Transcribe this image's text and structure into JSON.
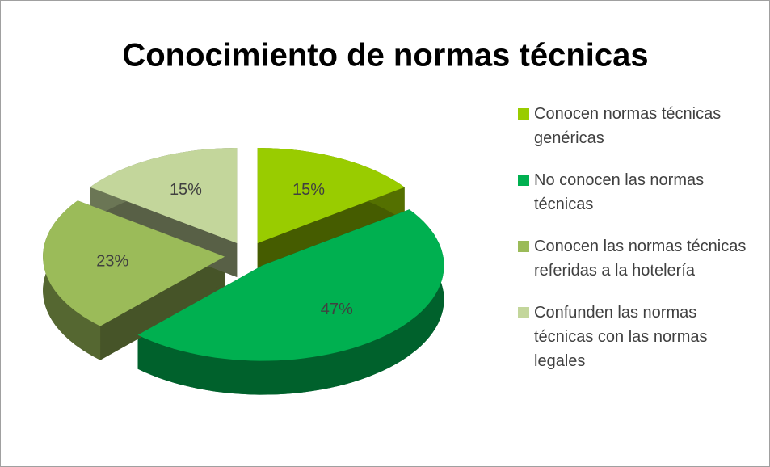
{
  "chart_data": {
    "type": "pie",
    "title": "Conocimiento de normas técnicas",
    "categories": [
      "Conocen normas técnicas genéricas",
      "No conocen las normas técnicas",
      "Conocen las normas técnicas referidas a la hotelería",
      "Confunden las normas técnicas con las normas legales"
    ],
    "values": [
      15,
      47,
      23,
      15
    ],
    "value_labels": [
      "15%",
      "47%",
      "23%",
      "15%"
    ],
    "colors": [
      "#99cc00",
      "#00b050",
      "#9bbb59",
      "#c3d69b"
    ],
    "legend": "right"
  }
}
